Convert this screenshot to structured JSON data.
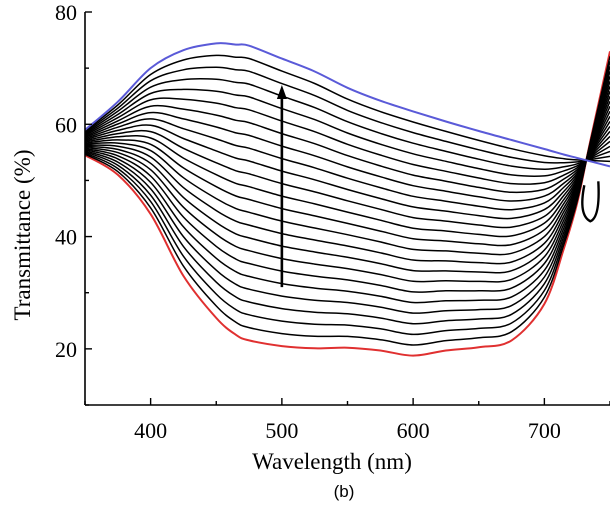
{
  "chart_data": {
    "type": "line",
    "title": "",
    "panel_label": "(b)",
    "xlabel": "Wavelength (nm)",
    "ylabel": "Transmittance (%)",
    "xlim": [
      350,
      750
    ],
    "ylim": [
      10,
      80
    ],
    "x_ticks": [
      400,
      500,
      600,
      700
    ],
    "y_ticks": [
      20,
      40,
      60,
      80
    ],
    "x": [
      350,
      375,
      400,
      425,
      450,
      465,
      475,
      500,
      525,
      550,
      575,
      600,
      625,
      650,
      675,
      700,
      715,
      725,
      735,
      750
    ],
    "low_curve": {
      "color": "#e03030",
      "values": [
        54.5,
        51,
        44,
        33,
        25.5,
        22.5,
        21.5,
        20.5,
        20.1,
        19.6,
        19.7,
        19.4,
        19.7,
        20.3,
        21.5,
        28,
        38,
        46,
        57,
        73
      ]
    },
    "high_curve": {
      "color": "#5a5ad8",
      "values": [
        59,
        64,
        70,
        73.2,
        74.4,
        74.2,
        74.0,
        71.7,
        69.4,
        66.5,
        64.2,
        62.3,
        60.5,
        58.8,
        57.2,
        55.6,
        54.6,
        54.0,
        53.4,
        52.5
      ]
    },
    "curve_count": 24,
    "arrow": {
      "x": 500,
      "from_y": 31,
      "to_y": 67
    }
  }
}
